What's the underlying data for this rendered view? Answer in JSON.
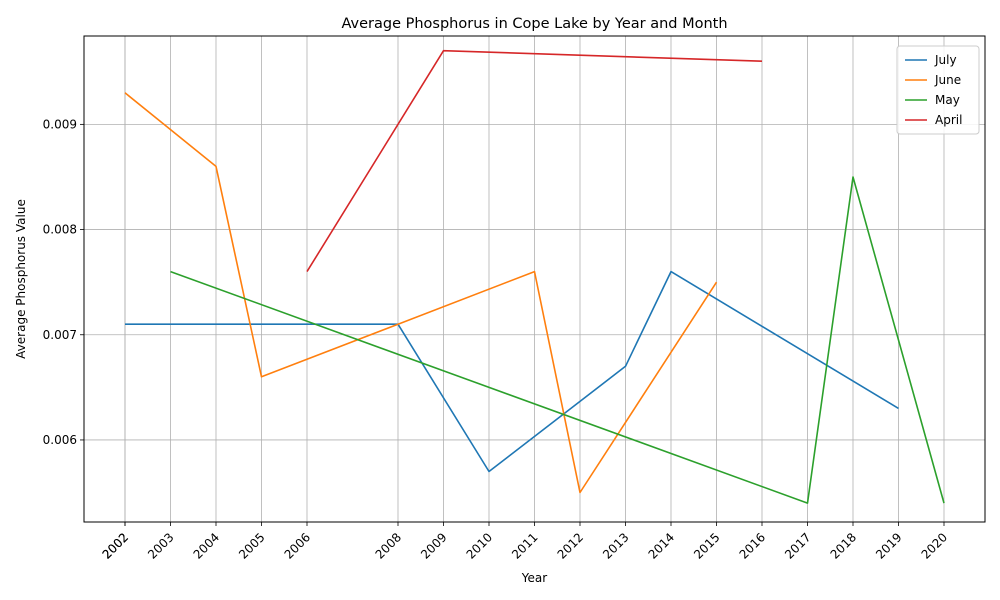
{
  "chart_data": {
    "type": "line",
    "title": "Average Phosphorus in Cope Lake by Year and Month",
    "xlabel": "Year",
    "ylabel": "Average Phosphorus Value",
    "x_tick_labels": [
      "2002",
      "2002",
      "2003",
      "2004",
      "2005",
      "2006",
      "2008",
      "2009",
      "2010",
      "2011",
      "2012",
      "2013",
      "2014",
      "2015",
      "2016",
      "2017",
      "2018",
      "2019",
      "2020"
    ],
    "y_ticks": [
      0.006,
      0.007,
      0.008,
      0.009
    ],
    "y_tick_labels": [
      "0.006",
      "0.007",
      "0.008",
      "0.009"
    ],
    "ylim": [
      0.00522,
      0.00984
    ],
    "grid": true,
    "legend_position": "top-right",
    "series": [
      {
        "name": "July",
        "color": "#1f77b4",
        "points": [
          [
            "2002",
            0.0071
          ],
          [
            "2008",
            0.0071
          ],
          [
            "2010",
            0.0057
          ],
          [
            "2013",
            0.0067
          ],
          [
            "2014",
            0.0076
          ],
          [
            "2019",
            0.0063
          ]
        ]
      },
      {
        "name": "June",
        "color": "#ff7f0e",
        "points": [
          [
            "2002",
            0.0093
          ],
          [
            "2004",
            0.0086
          ],
          [
            "2005",
            0.0066
          ],
          [
            "2008",
            0.0071
          ],
          [
            "2011",
            0.0076
          ],
          [
            "2012",
            0.0055
          ],
          [
            "2015",
            0.0075
          ]
        ]
      },
      {
        "name": "May",
        "color": "#2ca02c",
        "points": [
          [
            "2003",
            0.0076
          ],
          [
            "2017",
            0.0054
          ],
          [
            "2018",
            0.0085
          ],
          [
            "2020",
            0.0054
          ]
        ]
      },
      {
        "name": "April",
        "color": "#d62728",
        "points": [
          [
            "2006",
            0.0076
          ],
          [
            "2009",
            0.0097
          ],
          [
            "2016",
            0.0096
          ]
        ]
      }
    ]
  }
}
